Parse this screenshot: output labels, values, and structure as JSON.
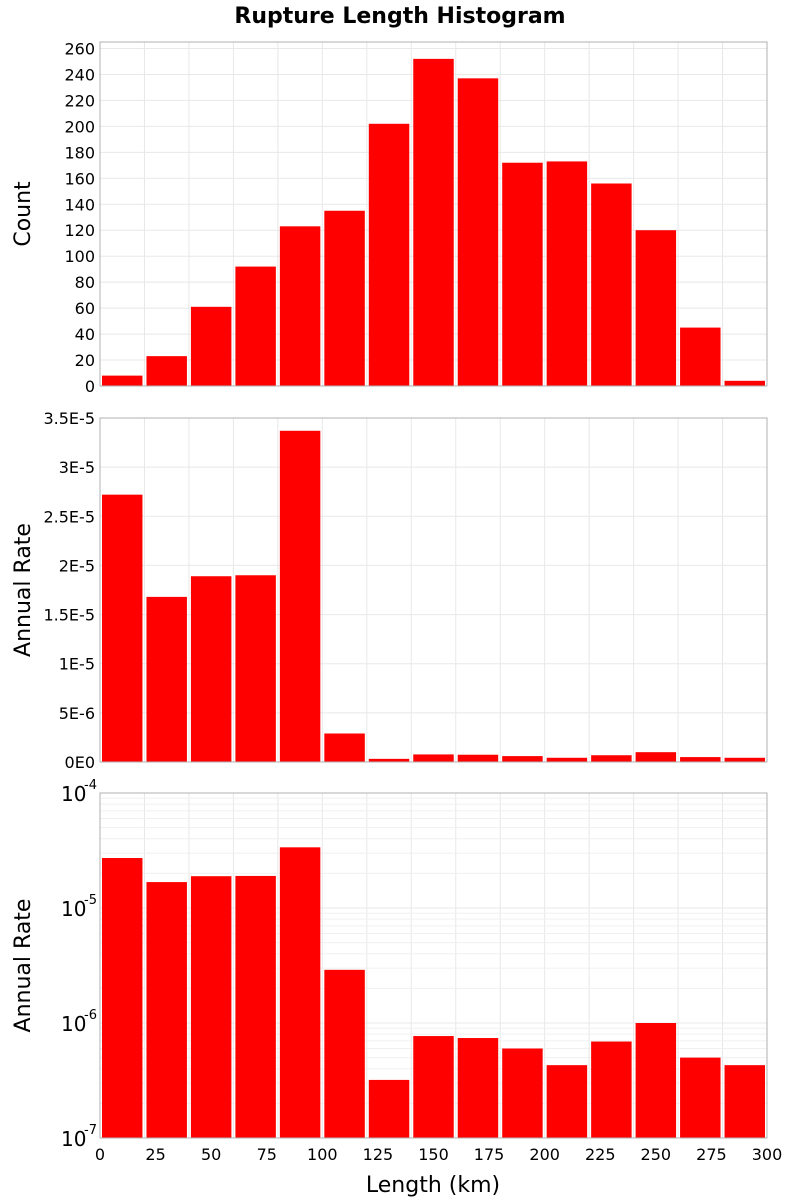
{
  "chart_data": [
    {
      "type": "bar",
      "panel": "count",
      "title": "Rupture Length Histogram",
      "ylabel": "Count",
      "xlim": [
        0,
        300
      ],
      "ylim": [
        0,
        265
      ],
      "grid": true,
      "bin_width": 20,
      "x": [
        10,
        30,
        50,
        70,
        90,
        110,
        130,
        150,
        170,
        190,
        210,
        230,
        250,
        270,
        290
      ],
      "values": [
        8,
        23,
        61,
        92,
        123,
        135,
        202,
        252,
        237,
        172,
        173,
        156,
        120,
        45,
        4
      ],
      "yticks": [
        0,
        20,
        40,
        60,
        80,
        100,
        120,
        140,
        160,
        180,
        200,
        220,
        240,
        260
      ],
      "ytick_labels": [
        "0",
        "20",
        "40",
        "60",
        "80",
        "100",
        "120",
        "140",
        "160",
        "180",
        "200",
        "220",
        "240",
        "260"
      ],
      "color": "#ff0000"
    },
    {
      "type": "bar",
      "panel": "rate-linear",
      "ylabel": "Annual Rate",
      "xlim": [
        0,
        300
      ],
      "ylim": [
        0,
        3.5e-05
      ],
      "grid": true,
      "bin_width": 20,
      "x": [
        10,
        30,
        50,
        70,
        90,
        110,
        130,
        150,
        170,
        190,
        210,
        230,
        250,
        270,
        290
      ],
      "values": [
        2.72e-05,
        1.68e-05,
        1.89e-05,
        1.9e-05,
        3.37e-05,
        2.9e-06,
        3.2e-07,
        7.7e-07,
        7.4e-07,
        6e-07,
        4.3e-07,
        6.9e-07,
        1e-06,
        5e-07,
        4.3e-07
      ],
      "yticks": [
        0,
        5e-06,
        1e-05,
        1.5e-05,
        2e-05,
        2.5e-05,
        3e-05,
        3.5e-05
      ],
      "ytick_labels": [
        "0E0",
        "5E-6",
        "1E-5",
        "1.5E-5",
        "2E-5",
        "2.5E-5",
        "3E-5",
        "3.5E-5"
      ],
      "color": "#ff0000"
    },
    {
      "type": "bar",
      "panel": "rate-log",
      "ylabel": "Annual Rate",
      "xlabel": "Length (km)",
      "xlim": [
        0,
        300
      ],
      "ylim": [
        1e-07,
        0.0001
      ],
      "yscale": "log",
      "grid": true,
      "bin_width": 20,
      "x": [
        10,
        30,
        50,
        70,
        90,
        110,
        130,
        150,
        170,
        190,
        210,
        230,
        250,
        270,
        290
      ],
      "values": [
        2.72e-05,
        1.68e-05,
        1.89e-05,
        1.9e-05,
        3.37e-05,
        2.9e-06,
        3.2e-07,
        7.7e-07,
        7.4e-07,
        6e-07,
        4.3e-07,
        6.9e-07,
        1e-06,
        5e-07,
        4.3e-07
      ],
      "ytick_base": "10",
      "ytick_exponents": [
        "-7",
        "-6",
        "-5",
        "-4"
      ],
      "xticks": [
        0,
        25,
        50,
        75,
        100,
        125,
        150,
        175,
        200,
        225,
        250,
        275,
        300
      ],
      "xtick_labels": [
        "0",
        "25",
        "50",
        "75",
        "100",
        "125",
        "150",
        "175",
        "200",
        "225",
        "250",
        "275",
        "300"
      ],
      "color": "#ff0000"
    }
  ]
}
